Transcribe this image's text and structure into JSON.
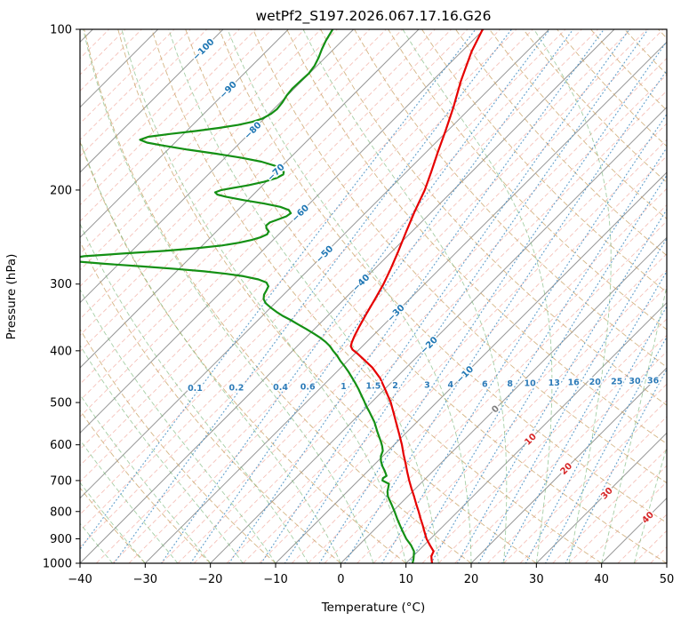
{
  "chart_data": {
    "type": "line",
    "projection": "skew-t-log-p",
    "title": "wetPf2_S197.2026.067.17.16.G26",
    "xlabel": "Temperature (°C)",
    "ylabel": "Pressure (hPa)",
    "x_axis": {
      "min": -40,
      "max": 50,
      "ticks": [
        -40,
        -30,
        -20,
        -10,
        0,
        10,
        20,
        30,
        40,
        50
      ]
    },
    "y_axis": {
      "min": 100,
      "max": 1000,
      "scale": "log",
      "ticks": [
        100,
        200,
        300,
        400,
        500,
        600,
        700,
        800,
        900,
        1000
      ]
    },
    "isotherm_labels": {
      "values": [
        -100,
        -90,
        -80,
        -70,
        -60,
        -50,
        -40,
        -30,
        -20,
        -10,
        0,
        10,
        20,
        30,
        40
      ],
      "color_negative": "#1f77b4",
      "color_zero": "#7f7f7f",
      "color_positive": "#d62728"
    },
    "mixing_ratio_labels": {
      "values": [
        "0.1",
        "0.2",
        "0.4",
        "0.6",
        "1",
        "1.5",
        "2",
        "3",
        "4",
        "6",
        "8",
        "10",
        "13",
        "16",
        "20",
        "25",
        "30",
        "36"
      ],
      "color": "#2d7bb8"
    },
    "background_lines": {
      "isotherms_major": {
        "start": -150,
        "end": 50,
        "step": 10,
        "color": "#8c8c8c",
        "style": "solid"
      },
      "isotherms_minor": {
        "start": -150,
        "end": 50,
        "step": 2.5,
        "color": "#f0998c",
        "style": "dashed"
      },
      "dry_adiabats": {
        "start": -40,
        "end": 190,
        "step": 10,
        "color": "#c9a267",
        "style": "dashed"
      },
      "moist_adiabats": {
        "start": -40,
        "end": 45,
        "step": 5,
        "color": "#74b474",
        "style": "dashed"
      },
      "mixing_ratio_lines": {
        "values": [
          0.1,
          0.2,
          0.4,
          0.6,
          1,
          1.5,
          2,
          3,
          4,
          6,
          8,
          10,
          13,
          16,
          20,
          25,
          30,
          36
        ],
        "color": "#4a90c4",
        "style": "dotted"
      }
    },
    "series": [
      {
        "name": "temperature",
        "color": "#e60000",
        "units": {
          "pressure": "hPa",
          "temperature": "degC"
        },
        "points": [
          [
            1000,
            14
          ],
          [
            985,
            13.4
          ],
          [
            970,
            12.8
          ],
          [
            950,
            12.4
          ],
          [
            925,
            10.9
          ],
          [
            900,
            9.4
          ],
          [
            875,
            8.1
          ],
          [
            850,
            6.8
          ],
          [
            825,
            5.4
          ],
          [
            800,
            4
          ],
          [
            775,
            2.5
          ],
          [
            750,
            1
          ],
          [
            725,
            -0.6
          ],
          [
            700,
            -2.2
          ],
          [
            675,
            -3.8
          ],
          [
            650,
            -5.4
          ],
          [
            625,
            -7.1
          ],
          [
            600,
            -8.8
          ],
          [
            575,
            -10.7
          ],
          [
            550,
            -12.7
          ],
          [
            525,
            -14.8
          ],
          [
            500,
            -17
          ],
          [
            475,
            -19.6
          ],
          [
            450,
            -22.4
          ],
          [
            430,
            -25.2
          ],
          [
            415,
            -27.8
          ],
          [
            405,
            -29.6
          ],
          [
            398,
            -31
          ],
          [
            392,
            -31.8
          ],
          [
            386,
            -32.2
          ],
          [
            375,
            -32.8
          ],
          [
            360,
            -33.5
          ],
          [
            340,
            -34.4
          ],
          [
            320,
            -35.3
          ],
          [
            300,
            -36.3
          ],
          [
            280,
            -37.6
          ],
          [
            260,
            -39.1
          ],
          [
            240,
            -40.8
          ],
          [
            220,
            -42.6
          ],
          [
            200,
            -44.4
          ],
          [
            185,
            -46.2
          ],
          [
            170,
            -48.2
          ],
          [
            155,
            -50.3
          ],
          [
            140,
            -52.7
          ],
          [
            125,
            -55.6
          ],
          [
            110,
            -58.5
          ],
          [
            100,
            -60.2
          ]
        ]
      },
      {
        "name": "dewpoint",
        "color": "#149014",
        "units": {
          "pressure": "hPa",
          "temperature": "degC"
        },
        "points": [
          [
            1000,
            11
          ],
          [
            985,
            10.6
          ],
          [
            970,
            10.1
          ],
          [
            950,
            9.4
          ],
          [
            925,
            8
          ],
          [
            900,
            6.3
          ],
          [
            875,
            4.8
          ],
          [
            850,
            3.3
          ],
          [
            825,
            1.8
          ],
          [
            800,
            0.3
          ],
          [
            775,
            -1.3
          ],
          [
            750,
            -3
          ],
          [
            735,
            -3.8
          ],
          [
            720,
            -4.4
          ],
          [
            710,
            -4.8
          ],
          [
            700,
            -6.3
          ],
          [
            693,
            -6.6
          ],
          [
            686,
            -6.4
          ],
          [
            672,
            -7.4
          ],
          [
            658,
            -8.5
          ],
          [
            644,
            -9.5
          ],
          [
            630,
            -10.3
          ],
          [
            616,
            -10.8
          ],
          [
            604,
            -11.6
          ],
          [
            592,
            -12.5
          ],
          [
            580,
            -13.5
          ],
          [
            568,
            -14.5
          ],
          [
            556,
            -15.5
          ],
          [
            544,
            -16.5
          ],
          [
            532,
            -17.7
          ],
          [
            520,
            -18.9
          ],
          [
            508,
            -20.2
          ],
          [
            496,
            -21.4
          ],
          [
            484,
            -22.7
          ],
          [
            472,
            -24
          ],
          [
            460,
            -25.4
          ],
          [
            448,
            -26.9
          ],
          [
            438,
            -28.2
          ],
          [
            428,
            -29.6
          ],
          [
            418,
            -31.1
          ],
          [
            408,
            -32.5
          ],
          [
            400,
            -33.8
          ],
          [
            392,
            -35
          ],
          [
            385,
            -36.3
          ],
          [
            378,
            -37.8
          ],
          [
            371,
            -39.5
          ],
          [
            364,
            -41.3
          ],
          [
            357,
            -43.2
          ],
          [
            350,
            -45.1
          ],
          [
            344,
            -46.9
          ],
          [
            338,
            -48.5
          ],
          [
            332,
            -50
          ],
          [
            326,
            -51.4
          ],
          [
            320,
            -52.4
          ],
          [
            314,
            -53
          ],
          [
            308,
            -53.3
          ],
          [
            303,
            -53.6
          ],
          [
            298,
            -54.5
          ],
          [
            294,
            -56.2
          ],
          [
            290,
            -59
          ],
          [
            287,
            -62
          ],
          [
            284,
            -65.8
          ],
          [
            281,
            -70.5
          ],
          [
            278,
            -76
          ],
          [
            275,
            -82
          ],
          [
            272,
            -87
          ],
          [
            269,
            -88.8
          ],
          [
            266,
            -86.5
          ],
          [
            263,
            -81
          ],
          [
            260,
            -75
          ],
          [
            257,
            -70.5
          ],
          [
            254,
            -67
          ],
          [
            251,
            -64.8
          ],
          [
            248,
            -63.3
          ],
          [
            245,
            -62.3
          ],
          [
            242,
            -61.8
          ],
          [
            239,
            -62
          ],
          [
            236,
            -62.8
          ],
          [
            233,
            -63.3
          ],
          [
            230,
            -63.2
          ],
          [
            227,
            -62.4
          ],
          [
            224,
            -61.6
          ],
          [
            221,
            -61.4
          ],
          [
            218,
            -62.2
          ],
          [
            215,
            -64
          ],
          [
            212,
            -67
          ],
          [
            209,
            -70.5
          ],
          [
            206,
            -73.8
          ],
          [
            204,
            -75.5
          ],
          [
            202,
            -76.2
          ],
          [
            200,
            -75.6
          ],
          [
            198,
            -74
          ],
          [
            196,
            -72.2
          ],
          [
            193,
            -70.3
          ],
          [
            190,
            -69
          ],
          [
            187,
            -68.5
          ],
          [
            185,
            -68.8
          ],
          [
            183,
            -69.6
          ],
          [
            180,
            -71.2
          ],
          [
            177,
            -73.8
          ],
          [
            174,
            -77.5
          ],
          [
            171,
            -82
          ],
          [
            168,
            -87
          ],
          [
            165,
            -91.5
          ],
          [
            163,
            -94.3
          ],
          [
            161,
            -95.8
          ],
          [
            159,
            -95
          ],
          [
            157,
            -92
          ],
          [
            155,
            -88.5
          ],
          [
            153,
            -85.5
          ],
          [
            151,
            -83
          ],
          [
            149,
            -81.3
          ],
          [
            147,
            -80.3
          ],
          [
            144,
            -79.7
          ],
          [
            141,
            -79.5
          ],
          [
            137,
            -79.7
          ],
          [
            133,
            -80.1
          ],
          [
            129,
            -80.3
          ],
          [
            125,
            -80.2
          ],
          [
            121,
            -80.1
          ],
          [
            117,
            -80.4
          ],
          [
            113,
            -81
          ],
          [
            109,
            -81.8
          ],
          [
            105,
            -82.5
          ],
          [
            100,
            -83.2
          ]
        ]
      }
    ]
  }
}
